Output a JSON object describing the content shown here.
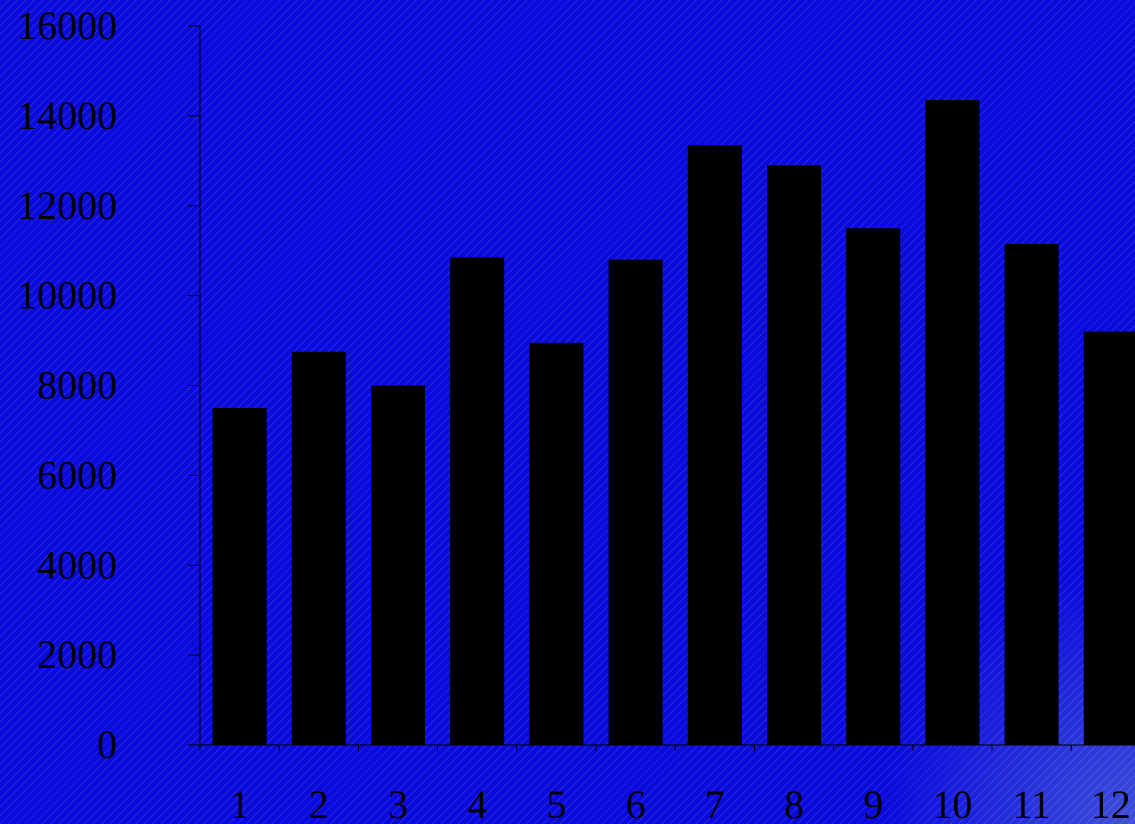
{
  "chart_data": {
    "type": "bar",
    "categories": [
      "1",
      "2",
      "3",
      "4",
      "5",
      "6",
      "7",
      "8",
      "9",
      "10",
      "11",
      "12"
    ],
    "values": [
      7500,
      8750,
      8000,
      10850,
      8950,
      10800,
      13350,
      12900,
      11500,
      14350,
      11150,
      9200
    ],
    "yticks": [
      "0",
      "2000",
      "4000",
      "6000",
      "8000",
      "10000",
      "12000",
      "14000",
      "16000"
    ],
    "ylim": [
      0,
      16000
    ],
    "title": "",
    "xlabel": "",
    "ylabel": "",
    "grid": false,
    "legend": "none",
    "colors": {
      "bar": "#000000",
      "axis": "#000000",
      "background": "#0a0adc"
    }
  }
}
